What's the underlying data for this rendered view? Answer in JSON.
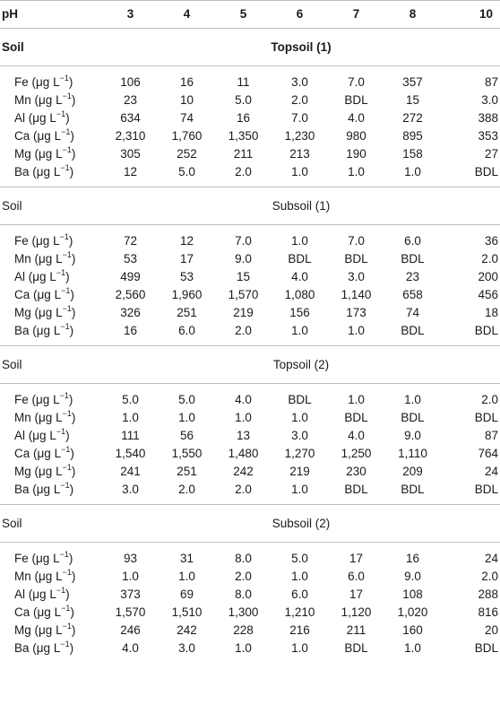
{
  "header": {
    "first": "pH",
    "cols": [
      "3",
      "4",
      "5",
      "6",
      "7",
      "8",
      "10"
    ]
  },
  "sections": [
    {
      "label": "Soil",
      "title": "Topsoil (1)",
      "rows": [
        {
          "element": "Fe",
          "unit": "(μg L",
          "sup": "−1",
          "close": ")",
          "values": [
            "106",
            "16",
            "11",
            "3.0",
            "7.0",
            "357",
            "87"
          ]
        },
        {
          "element": "Mn",
          "unit": "(μg L",
          "sup": "−1",
          "close": ")",
          "values": [
            "23",
            "10",
            "5.0",
            "2.0",
            "BDL",
            "15",
            "3.0"
          ]
        },
        {
          "element": "Al",
          "unit": "(μg L",
          "sup": "−1",
          "close": ")",
          "values": [
            "634",
            "74",
            "16",
            "7.0",
            "4.0",
            "272",
            "388"
          ]
        },
        {
          "element": "Ca",
          "unit": "(μg L",
          "sup": "−1",
          "close": ")",
          "values": [
            "2,310",
            "1,760",
            "1,350",
            "1,230",
            "980",
            "895",
            "353"
          ]
        },
        {
          "element": "Mg",
          "unit": "(μg L",
          "sup": "−1",
          "close": ")",
          "values": [
            "305",
            "252",
            "211",
            "213",
            "190",
            "158",
            "27"
          ]
        },
        {
          "element": "Ba",
          "unit": "(μg L",
          "sup": "−1",
          "close": ")",
          "values": [
            "12",
            "5.0",
            "2.0",
            "1.0",
            "1.0",
            "1.0",
            "BDL"
          ]
        }
      ]
    },
    {
      "label": "Soil",
      "title": "Subsoil (1)",
      "rows": [
        {
          "element": "Fe",
          "unit": "(μg L",
          "sup": "−1",
          "close": ")",
          "values": [
            "72",
            "12",
            "7.0",
            "1.0",
            "7.0",
            "6.0",
            "36"
          ]
        },
        {
          "element": "Mn",
          "unit": "(μg L",
          "sup": "−1",
          "close": ")",
          "values": [
            "53",
            "17",
            "9.0",
            "BDL",
            "BDL",
            "BDL",
            "2.0"
          ]
        },
        {
          "element": "Al",
          "unit": "(μg L",
          "sup": "−1",
          "close": ")",
          "values": [
            "499",
            "53",
            "15",
            "4.0",
            "3.0",
            "23",
            "200"
          ]
        },
        {
          "element": "Ca",
          "unit": "(μg L",
          "sup": "−1",
          "close": ")",
          "values": [
            "2,560",
            "1,960",
            "1,570",
            "1,080",
            "1,140",
            "658",
            "456"
          ]
        },
        {
          "element": "Mg",
          "unit": "(μg L",
          "sup": "−1",
          "close": ")",
          "values": [
            "326",
            "251",
            "219",
            "156",
            "173",
            "74",
            "18"
          ]
        },
        {
          "element": "Ba",
          "unit": "(μg L",
          "sup": "−1",
          "close": ")",
          "values": [
            "16",
            "6.0",
            "2.0",
            "1.0",
            "1.0",
            "BDL",
            "BDL"
          ]
        }
      ]
    },
    {
      "label": "Soil",
      "title": "Topsoil (2)",
      "rows": [
        {
          "element": "Fe",
          "unit": "(μg L",
          "sup": "−1",
          "close": ")",
          "values": [
            "5.0",
            "5.0",
            "4.0",
            "BDL",
            "1.0",
            "1.0",
            "2.0"
          ]
        },
        {
          "element": "Mn",
          "unit": "(μg L",
          "sup": "−1",
          "close": ")",
          "values": [
            "1.0",
            "1.0",
            "1.0",
            "1.0",
            "BDL",
            "BDL",
            "BDL"
          ]
        },
        {
          "element": "Al",
          "unit": "(μg L",
          "sup": "−1",
          "close": ")",
          "values": [
            "111",
            "56",
            "13",
            "3.0",
            "4.0",
            "9.0",
            "87"
          ]
        },
        {
          "element": "Ca",
          "unit": "(μg L",
          "sup": "−1",
          "close": ")",
          "values": [
            "1,540",
            "1,550",
            "1,480",
            "1,270",
            "1,250",
            "1,110",
            "764"
          ]
        },
        {
          "element": "Mg",
          "unit": "(μg L",
          "sup": "−1",
          "close": ")",
          "values": [
            "241",
            "251",
            "242",
            "219",
            "230",
            "209",
            "24"
          ]
        },
        {
          "element": "Ba",
          "unit": "(μg L",
          "sup": "−1",
          "close": ")",
          "values": [
            "3.0",
            "2.0",
            "2.0",
            "1.0",
            "BDL",
            "BDL",
            "BDL"
          ]
        }
      ]
    },
    {
      "label": "Soil",
      "title": "Subsoil (2)",
      "rows": [
        {
          "element": "Fe",
          "unit": "(μg L",
          "sup": "−1",
          "close": ")",
          "values": [
            "93",
            "31",
            "8.0",
            "5.0",
            "17",
            "16",
            "24"
          ]
        },
        {
          "element": "Mn",
          "unit": "(μg L",
          "sup": "−1",
          "close": ")",
          "values": [
            "1.0",
            "1.0",
            "2.0",
            "1.0",
            "6.0",
            "9.0",
            "2.0"
          ]
        },
        {
          "element": "Al",
          "unit": "(μg L",
          "sup": "−1",
          "close": ")",
          "values": [
            "373",
            "69",
            "8.0",
            "6.0",
            "17",
            "108",
            "288"
          ]
        },
        {
          "element": "Ca",
          "unit": "(μg L",
          "sup": "−1",
          "close": ")",
          "values": [
            "1,570",
            "1,510",
            "1,300",
            "1,210",
            "1,120",
            "1,020",
            "816"
          ]
        },
        {
          "element": "Mg",
          "unit": "(μg L",
          "sup": "−1",
          "close": ")",
          "values": [
            "246",
            "242",
            "228",
            "216",
            "211",
            "160",
            "20"
          ]
        },
        {
          "element": "Ba",
          "unit": "(μg L",
          "sup": "−1",
          "close": ")",
          "values": [
            "4.0",
            "3.0",
            "1.0",
            "1.0",
            "BDL",
            "1.0",
            "BDL"
          ]
        }
      ]
    }
  ]
}
